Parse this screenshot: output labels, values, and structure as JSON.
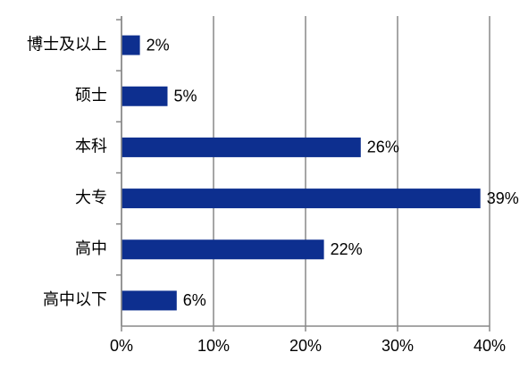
{
  "chart_data": {
    "type": "bar",
    "orientation": "horizontal",
    "categories": [
      "博士及以上",
      "硕士",
      "本科",
      "大专",
      "高中",
      "高中以下"
    ],
    "values": [
      2,
      5,
      26,
      39,
      22,
      6
    ],
    "value_labels": [
      "2%",
      "5%",
      "26%",
      "39%",
      "22%",
      "6%"
    ],
    "color": "#0d2f8f",
    "xlim": [
      0,
      40
    ],
    "xticks": [
      {
        "value": 0,
        "label": "0%"
      },
      {
        "value": 10,
        "label": "10%"
      },
      {
        "value": 20,
        "label": "20%"
      },
      {
        "value": 30,
        "label": "30%"
      },
      {
        "value": 40,
        "label": "40%"
      }
    ],
    "grid": true
  }
}
